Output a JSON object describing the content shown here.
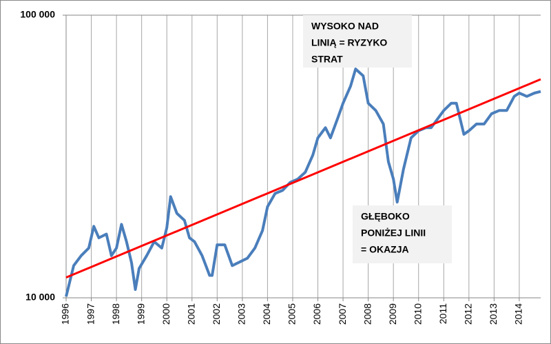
{
  "chart_data": {
    "type": "line",
    "log_scale": true,
    "grid": true,
    "xlim": [
      1996,
      2014.85
    ],
    "xticks": [
      1996,
      1997,
      1998,
      1999,
      2000,
      2001,
      2002,
      2003,
      2004,
      2005,
      2006,
      2007,
      2008,
      2009,
      2010,
      2011,
      2012,
      2013,
      2014
    ],
    "ylim": [
      10000,
      100000
    ],
    "yticks": [
      {
        "value": 10000,
        "label": "10 000"
      },
      {
        "value": 100000,
        "label": "100 000"
      }
    ],
    "series": [
      {
        "color": "#4a7ebb",
        "width": 4,
        "x": [
          1996.0,
          1996.3,
          1996.6,
          1996.9,
          1997.1,
          1997.3,
          1997.6,
          1997.8,
          1998.0,
          1998.2,
          1998.4,
          1998.6,
          1998.75,
          1998.9,
          1999.2,
          1999.5,
          1999.8,
          2000.0,
          2000.15,
          2000.4,
          2000.7,
          2000.9,
          2001.1,
          2001.4,
          2001.7,
          2001.8,
          2002.0,
          2002.3,
          2002.6,
          2002.9,
          2003.2,
          2003.5,
          2003.8,
          2004.0,
          2004.3,
          2004.6,
          2004.9,
          2005.2,
          2005.5,
          2005.8,
          2006.0,
          2006.3,
          2006.5,
          2006.8,
          2007.0,
          2007.3,
          2007.5,
          2007.8,
          2008.0,
          2008.3,
          2008.6,
          2008.8,
          2009.0,
          2009.15,
          2009.4,
          2009.7,
          2010.0,
          2010.3,
          2010.5,
          2010.8,
          2011.0,
          2011.3,
          2011.5,
          2011.8,
          2012.0,
          2012.3,
          2012.6,
          2012.9,
          2013.2,
          2013.5,
          2013.8,
          2014.0,
          2014.3,
          2014.6,
          2014.85
        ],
        "values": [
          10100,
          13000,
          14100,
          15000,
          17900,
          16300,
          16800,
          14100,
          15000,
          18200,
          15800,
          13300,
          10700,
          12700,
          14100,
          15800,
          15000,
          17700,
          22800,
          19900,
          18800,
          16300,
          15800,
          14100,
          12000,
          12000,
          15400,
          15400,
          13000,
          13400,
          13800,
          15000,
          17300,
          21000,
          23400,
          24000,
          25600,
          26300,
          27800,
          32000,
          36800,
          40000,
          36800,
          43500,
          48800,
          56100,
          64500,
          61000,
          48800,
          46000,
          41200,
          30300,
          26300,
          21800,
          28500,
          36800,
          39000,
          40000,
          40000,
          43500,
          46000,
          48800,
          48800,
          37900,
          39000,
          41200,
          41200,
          44800,
          46000,
          46000,
          51600,
          53000,
          51600,
          53000,
          53700
        ]
      },
      {
        "color": "#ff0000",
        "width": 3,
        "x": [
          1996,
          2014.85
        ],
        "values": [
          11800,
          59300
        ]
      }
    ],
    "annotations": [
      {
        "lines": [
          "WYSOKO NAD",
          "LINIĄ = RYZYKO",
          "STRAT"
        ]
      },
      {
        "lines": [
          "GŁĘBOKO",
          "PONIŻEJ LINII",
          "= OKAZJA"
        ]
      }
    ]
  }
}
